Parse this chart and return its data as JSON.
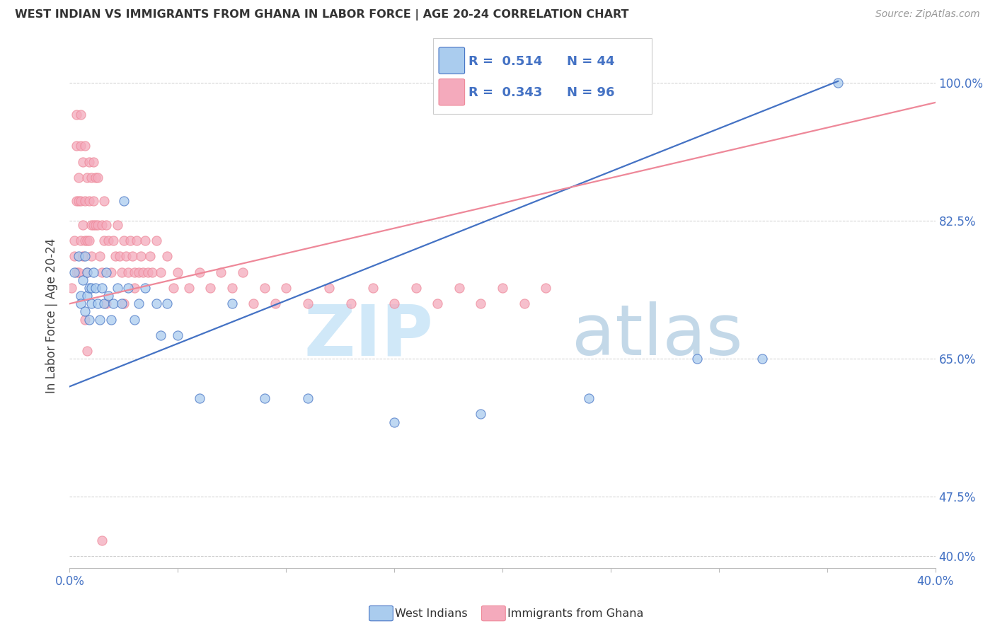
{
  "title": "WEST INDIAN VS IMMIGRANTS FROM GHANA IN LABOR FORCE | AGE 20-24 CORRELATION CHART",
  "source": "Source: ZipAtlas.com",
  "ylabel": "In Labor Force | Age 20-24",
  "xlim": [
    0.0,
    0.4
  ],
  "ylim": [
    0.385,
    1.025
  ],
  "color_blue": "#AACCEE",
  "color_pink": "#F4AABC",
  "color_blue_line": "#4472C4",
  "color_pink_line": "#EE8899",
  "color_text_blue": "#4472C4",
  "grid_color": "#CCCCCC",
  "background_color": "#FFFFFF",
  "blue_trendline_x": [
    0.0,
    0.355
  ],
  "blue_trendline_y": [
    0.615,
    1.002
  ],
  "pink_trendline_x": [
    0.0,
    0.4
  ],
  "pink_trendline_y": [
    0.72,
    0.975
  ],
  "blue_x": [
    0.002,
    0.004,
    0.005,
    0.005,
    0.006,
    0.007,
    0.007,
    0.008,
    0.008,
    0.009,
    0.009,
    0.01,
    0.01,
    0.011,
    0.012,
    0.013,
    0.014,
    0.015,
    0.016,
    0.017,
    0.018,
    0.019,
    0.02,
    0.022,
    0.024,
    0.025,
    0.027,
    0.03,
    0.032,
    0.035,
    0.04,
    0.042,
    0.045,
    0.05,
    0.06,
    0.075,
    0.09,
    0.11,
    0.15,
    0.19,
    0.24,
    0.29,
    0.32,
    0.355
  ],
  "blue_y": [
    0.76,
    0.78,
    0.73,
    0.72,
    0.75,
    0.78,
    0.71,
    0.76,
    0.73,
    0.74,
    0.7,
    0.74,
    0.72,
    0.76,
    0.74,
    0.72,
    0.7,
    0.74,
    0.72,
    0.76,
    0.73,
    0.7,
    0.72,
    0.74,
    0.72,
    0.85,
    0.74,
    0.7,
    0.72,
    0.74,
    0.72,
    0.68,
    0.72,
    0.68,
    0.6,
    0.72,
    0.6,
    0.6,
    0.57,
    0.58,
    0.6,
    0.65,
    0.65,
    1.0
  ],
  "pink_x": [
    0.001,
    0.002,
    0.002,
    0.003,
    0.003,
    0.003,
    0.003,
    0.004,
    0.004,
    0.004,
    0.005,
    0.005,
    0.005,
    0.005,
    0.006,
    0.006,
    0.006,
    0.007,
    0.007,
    0.007,
    0.008,
    0.008,
    0.008,
    0.009,
    0.009,
    0.009,
    0.01,
    0.01,
    0.01,
    0.011,
    0.011,
    0.011,
    0.012,
    0.012,
    0.013,
    0.013,
    0.014,
    0.015,
    0.015,
    0.016,
    0.016,
    0.017,
    0.018,
    0.019,
    0.02,
    0.021,
    0.022,
    0.023,
    0.024,
    0.025,
    0.026,
    0.027,
    0.028,
    0.029,
    0.03,
    0.031,
    0.032,
    0.033,
    0.034,
    0.035,
    0.036,
    0.037,
    0.038,
    0.04,
    0.042,
    0.045,
    0.048,
    0.05,
    0.055,
    0.06,
    0.065,
    0.07,
    0.075,
    0.08,
    0.085,
    0.09,
    0.095,
    0.1,
    0.11,
    0.12,
    0.13,
    0.14,
    0.15,
    0.16,
    0.17,
    0.18,
    0.19,
    0.2,
    0.21,
    0.22,
    0.007,
    0.017,
    0.025,
    0.03,
    0.008,
    0.015
  ],
  "pink_y": [
    0.74,
    0.78,
    0.8,
    0.76,
    0.92,
    0.85,
    0.96,
    0.76,
    0.85,
    0.88,
    0.8,
    0.85,
    0.92,
    0.96,
    0.78,
    0.82,
    0.9,
    0.8,
    0.85,
    0.92,
    0.76,
    0.8,
    0.88,
    0.8,
    0.85,
    0.9,
    0.78,
    0.82,
    0.88,
    0.82,
    0.85,
    0.9,
    0.82,
    0.88,
    0.82,
    0.88,
    0.78,
    0.76,
    0.82,
    0.8,
    0.85,
    0.82,
    0.8,
    0.76,
    0.8,
    0.78,
    0.82,
    0.78,
    0.76,
    0.8,
    0.78,
    0.76,
    0.8,
    0.78,
    0.76,
    0.8,
    0.76,
    0.78,
    0.76,
    0.8,
    0.76,
    0.78,
    0.76,
    0.8,
    0.76,
    0.78,
    0.74,
    0.76,
    0.74,
    0.76,
    0.74,
    0.76,
    0.74,
    0.76,
    0.72,
    0.74,
    0.72,
    0.74,
    0.72,
    0.74,
    0.72,
    0.74,
    0.72,
    0.74,
    0.72,
    0.74,
    0.72,
    0.74,
    0.72,
    0.74,
    0.7,
    0.72,
    0.72,
    0.74,
    0.66,
    0.42
  ]
}
